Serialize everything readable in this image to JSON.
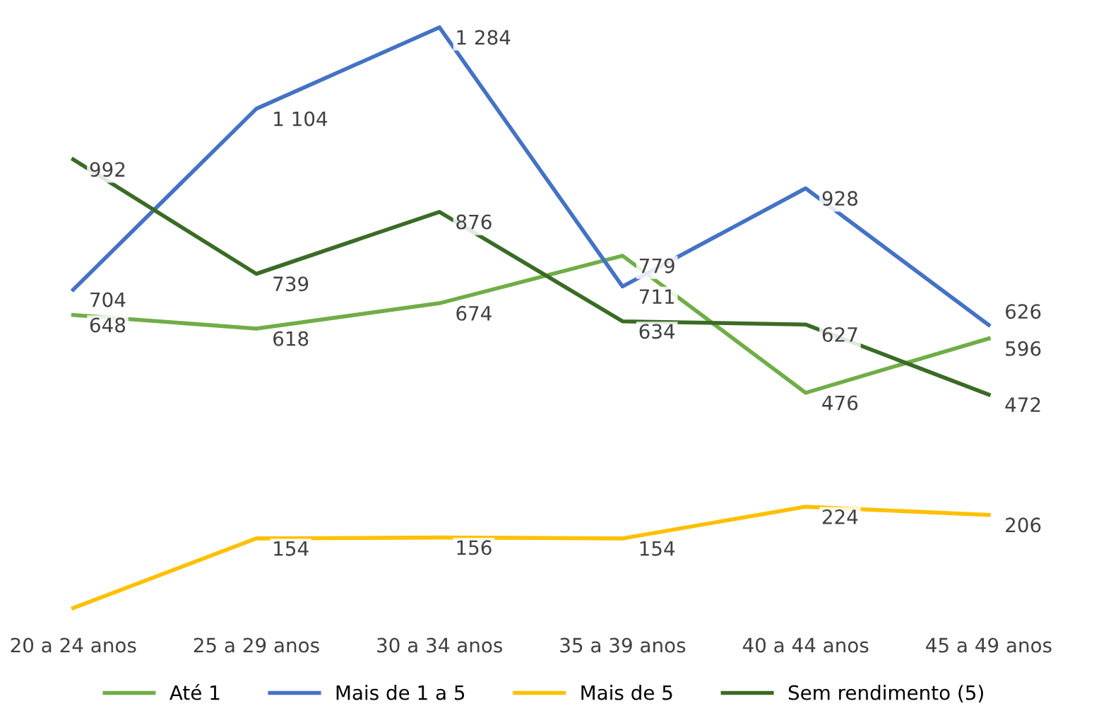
{
  "chart_data": {
    "type": "line",
    "categories": [
      "20 a 24 anos",
      "25 a 29 anos",
      "30 a 34 anos",
      "35 a 39 anos",
      "40 a 44 anos",
      "45 a 49 anos"
    ],
    "series": [
      {
        "name": "Até 1",
        "color": "#70ad47",
        "values": [
          648,
          618,
          674,
          779,
          476,
          596
        ],
        "value_labels": [
          "648",
          "618",
          "674",
          "779",
          "476",
          "596"
        ]
      },
      {
        "name": "Mais de 1 a 5",
        "color": "#4472c4",
        "values": [
          704,
          1104,
          1284,
          711,
          928,
          626
        ],
        "value_labels": [
          "704",
          "1 104",
          "1 284",
          "711",
          "928",
          "626"
        ]
      },
      {
        "name": "Mais de 5",
        "color": "#ffc000",
        "values": [
          0,
          154,
          156,
          154,
          224,
          206
        ],
        "value_labels": [
          null,
          "154",
          "156",
          "154",
          "224",
          "206"
        ]
      },
      {
        "name": "Sem rendimento (5)",
        "color": "#3a6b26",
        "values": [
          992,
          739,
          876,
          634,
          627,
          472
        ],
        "value_labels": [
          "992",
          "739",
          "876",
          "634",
          "627",
          "472"
        ]
      }
    ],
    "legend": "bottom",
    "grid": false,
    "marker": "none",
    "line_style": "solid"
  }
}
